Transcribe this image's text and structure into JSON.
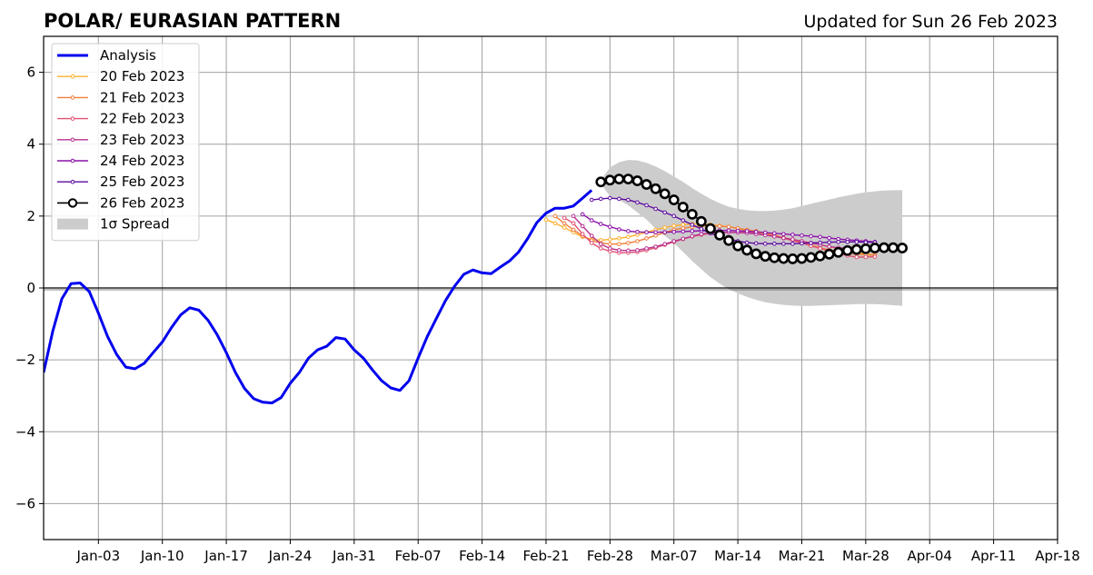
{
  "chart_data": {
    "type": "line",
    "title": "POLAR/ EURASIAN  PATTERN",
    "updated": "Updated for Sun 26 Feb 2023",
    "xlabel": "",
    "ylabel": "",
    "x_date_origin": "2022-12-28",
    "x_range_days": [
      0,
      111
    ],
    "ylim": [
      -7,
      7
    ],
    "y_ticks": [
      {
        "value": 6,
        "label": "6"
      },
      {
        "value": 4,
        "label": "4"
      },
      {
        "value": 2,
        "label": "2"
      },
      {
        "value": 0,
        "label": "0"
      },
      {
        "value": -2,
        "label": "−2"
      },
      {
        "value": -4,
        "label": "−4"
      },
      {
        "value": -6,
        "label": "−6"
      }
    ],
    "x_ticks": [
      {
        "day": 6,
        "label": "Jan-03"
      },
      {
        "day": 13,
        "label": "Jan-10"
      },
      {
        "day": 20,
        "label": "Jan-17"
      },
      {
        "day": 27,
        "label": "Jan-24"
      },
      {
        "day": 34,
        "label": "Jan-31"
      },
      {
        "day": 41,
        "label": "Feb-07"
      },
      {
        "day": 48,
        "label": "Feb-14"
      },
      {
        "day": 55,
        "label": "Feb-21"
      },
      {
        "day": 62,
        "label": "Feb-28"
      },
      {
        "day": 69,
        "label": "Mar-07"
      },
      {
        "day": 76,
        "label": "Mar-14"
      },
      {
        "day": 83,
        "label": "Mar-21"
      },
      {
        "day": 90,
        "label": "Mar-28"
      },
      {
        "day": 97,
        "label": "Apr-04"
      },
      {
        "day": 104,
        "label": "Apr-11"
      },
      {
        "day": 111,
        "label": "Apr-18"
      }
    ],
    "grid": true,
    "legend_position": "top-left",
    "series": [
      {
        "name": "Analysis",
        "color": "#0000ee",
        "style": "thick",
        "x_start": 0,
        "values": [
          -2.35,
          -1.2,
          -0.3,
          0.12,
          0.14,
          -0.1,
          -0.7,
          -1.35,
          -1.85,
          -2.2,
          -2.25,
          -2.1,
          -1.8,
          -1.5,
          -1.1,
          -0.75,
          -0.55,
          -0.62,
          -0.9,
          -1.3,
          -1.8,
          -2.35,
          -2.8,
          -3.08,
          -3.18,
          -3.2,
          -3.05,
          -2.65,
          -2.35,
          -1.95,
          -1.72,
          -1.62,
          -1.38,
          -1.42,
          -1.72,
          -1.95,
          -2.28,
          -2.58,
          -2.78,
          -2.85,
          -2.58,
          -1.95,
          -1.35,
          -0.85,
          -0.35,
          0.05,
          0.38,
          0.5,
          0.42,
          0.4,
          0.58,
          0.75,
          1.0,
          1.38,
          1.82,
          2.08,
          2.22,
          2.22,
          2.28,
          2.5,
          2.72
        ]
      },
      {
        "name": "20 Feb 2023",
        "color": "#ffb030",
        "style": "small-dot",
        "x_start": 55,
        "values": [
          1.9,
          1.8,
          1.68,
          1.55,
          1.42,
          1.35,
          1.33,
          1.35,
          1.38,
          1.42,
          1.48,
          1.55,
          1.62,
          1.68,
          1.73,
          1.76,
          1.78,
          1.78,
          1.76,
          1.73,
          1.7,
          1.65,
          1.6,
          1.55,
          1.5,
          1.45,
          1.4,
          1.35,
          1.3,
          1.25,
          1.2,
          1.15,
          1.1,
          1.05,
          1.0,
          0.95,
          0.92
        ]
      },
      {
        "name": "21 Feb 2023",
        "color": "#f07f3c",
        "style": "small-dot",
        "x_start": 56,
        "values": [
          2.0,
          1.8,
          1.62,
          1.45,
          1.32,
          1.25,
          1.22,
          1.22,
          1.25,
          1.3,
          1.38,
          1.46,
          1.54,
          1.62,
          1.66,
          1.7,
          1.72,
          1.73,
          1.72,
          1.7,
          1.66,
          1.62,
          1.58,
          1.53,
          1.47,
          1.4,
          1.33,
          1.26,
          1.19,
          1.12,
          1.06,
          1.01,
          0.97,
          0.94,
          0.92,
          0.91
        ]
      },
      {
        "name": "22 Feb 2023",
        "color": "#e05270",
        "style": "small-dot",
        "x_start": 57,
        "values": [
          1.95,
          1.8,
          1.5,
          1.25,
          1.1,
          1.02,
          0.98,
          0.98,
          1.0,
          1.05,
          1.12,
          1.2,
          1.28,
          1.36,
          1.43,
          1.48,
          1.52,
          1.54,
          1.55,
          1.55,
          1.54,
          1.52,
          1.48,
          1.44,
          1.38,
          1.32,
          1.25,
          1.17,
          1.1,
          1.03,
          0.96,
          0.9,
          0.86,
          0.86,
          0.87
        ]
      },
      {
        "name": "23 Feb 2023",
        "color": "#b83090",
        "style": "small-dot",
        "x_start": 58,
        "values": [
          2.0,
          1.72,
          1.45,
          1.22,
          1.1,
          1.05,
          1.04,
          1.05,
          1.1,
          1.15,
          1.22,
          1.3,
          1.37,
          1.44,
          1.5,
          1.53,
          1.55,
          1.55,
          1.54,
          1.53,
          1.5,
          1.47,
          1.43,
          1.39,
          1.35,
          1.3,
          1.25,
          1.2,
          1.15,
          1.12,
          1.1,
          1.08,
          1.08,
          1.08
        ]
      },
      {
        "name": "24 Feb 2023",
        "color": "#8a10a8",
        "style": "small-dot",
        "x_start": 59,
        "values": [
          2.05,
          1.88,
          1.78,
          1.7,
          1.63,
          1.58,
          1.56,
          1.55,
          1.55,
          1.55,
          1.56,
          1.57,
          1.58,
          1.59,
          1.6,
          1.6,
          1.6,
          1.59,
          1.58,
          1.56,
          1.54,
          1.52,
          1.5,
          1.48,
          1.46,
          1.44,
          1.42,
          1.39,
          1.36,
          1.34,
          1.32,
          1.3,
          1.28
        ]
      },
      {
        "name": "25 Feb 2023",
        "color": "#5c0aa0",
        "style": "small-dot",
        "x_start": 60,
        "values": [
          2.45,
          2.48,
          2.5,
          2.48,
          2.45,
          2.38,
          2.3,
          2.2,
          2.1,
          2.0,
          1.88,
          1.76,
          1.64,
          1.52,
          1.43,
          1.36,
          1.3,
          1.26,
          1.24,
          1.23,
          1.23,
          1.23,
          1.23,
          1.24,
          1.25,
          1.26,
          1.27,
          1.28,
          1.28,
          1.28,
          1.27,
          1.27
        ]
      },
      {
        "name": "26 Feb 2023",
        "color": "#000000",
        "style": "big-circle",
        "x_start": 61,
        "values": [
          2.95,
          3.0,
          3.03,
          3.03,
          2.98,
          2.88,
          2.76,
          2.62,
          2.45,
          2.25,
          2.05,
          1.85,
          1.65,
          1.47,
          1.32,
          1.17,
          1.05,
          0.95,
          0.88,
          0.84,
          0.82,
          0.81,
          0.82,
          0.85,
          0.89,
          0.94,
          0.99,
          1.04,
          1.07,
          1.09,
          1.11,
          1.12,
          1.12,
          1.11
        ]
      }
    ],
    "spread": {
      "name": "1σ Spread",
      "color": "#cccccc",
      "x": [
        61,
        62,
        63,
        64,
        65,
        66,
        67,
        68,
        69,
        70,
        71,
        72,
        73,
        74,
        75,
        76,
        77,
        78,
        79,
        80,
        81,
        82,
        83,
        84,
        85,
        86,
        87,
        88,
        89,
        90,
        91,
        92,
        93,
        94
      ],
      "upper": [
        3.0,
        3.35,
        3.5,
        3.56,
        3.55,
        3.48,
        3.38,
        3.25,
        3.1,
        2.95,
        2.78,
        2.62,
        2.48,
        2.36,
        2.26,
        2.2,
        2.16,
        2.14,
        2.14,
        2.15,
        2.18,
        2.22,
        2.28,
        2.34,
        2.4,
        2.46,
        2.52,
        2.57,
        2.62,
        2.66,
        2.69,
        2.71,
        2.72,
        2.72
      ],
      "lower": [
        2.9,
        2.55,
        2.45,
        2.3,
        2.1,
        1.9,
        1.65,
        1.45,
        1.25,
        1.0,
        0.75,
        0.52,
        0.3,
        0.12,
        -0.03,
        -0.15,
        -0.25,
        -0.33,
        -0.4,
        -0.44,
        -0.47,
        -0.49,
        -0.5,
        -0.5,
        -0.49,
        -0.48,
        -0.47,
        -0.46,
        -0.45,
        -0.45,
        -0.45,
        -0.46,
        -0.48,
        -0.5
      ]
    }
  }
}
